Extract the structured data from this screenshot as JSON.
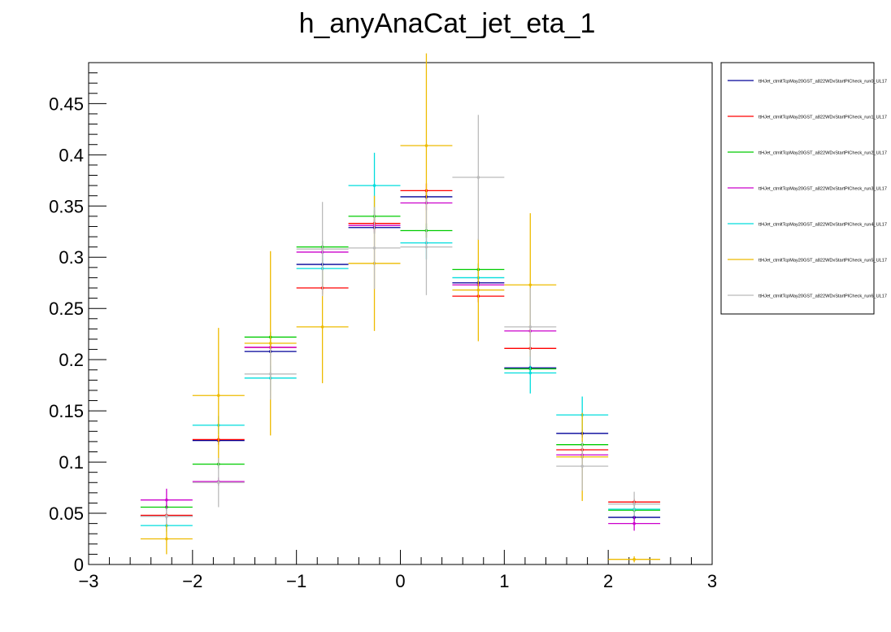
{
  "chart_data": {
    "type": "scatter",
    "title": "h_anyAnaCat_jet_eta_1",
    "xlabel": "",
    "ylabel": "",
    "xlim": [
      -3,
      3
    ],
    "ylim": [
      0,
      0.49
    ],
    "x_ticks": [
      -3,
      -2,
      -1,
      0,
      1,
      2,
      3
    ],
    "x_tick_labels": [
      "−3",
      "−2",
      "−1",
      "0",
      "1",
      "2",
      "3"
    ],
    "y_ticks": [
      0,
      0.05,
      0.1,
      0.15,
      0.2,
      0.25,
      0.3,
      0.35,
      0.4,
      0.45
    ],
    "y_tick_labels": [
      "0",
      "0.05",
      "0.1",
      "0.15",
      "0.2",
      "0.25",
      "0.3",
      "0.35",
      "0.4",
      "0.45"
    ],
    "bin_edges": [
      -2.5,
      -2,
      -1.5,
      -1,
      -0.5,
      0,
      0.5,
      1,
      1.5,
      2,
      2.5
    ],
    "x": [
      -2.25,
      -1.75,
      -1.25,
      -0.75,
      -0.25,
      0.25,
      0.75,
      1.25,
      1.75,
      2.25
    ],
    "grid": false,
    "legend_position": "right",
    "series": [
      {
        "name": "ttHJet_ctmltTcpMay20GST_a822WDxStartPICheck_run0_UL17",
        "color": "#000099",
        "values": [
          0.047,
          0.121,
          0.208,
          0.293,
          0.329,
          0.359,
          0.275,
          0.192,
          0.128,
          0.046
        ],
        "errors": [
          0.003,
          0.004,
          0.005,
          0.006,
          0.006,
          0.007,
          0.006,
          0.005,
          0.004,
          0.003
        ]
      },
      {
        "name": "ttHJet_ctmltTcpMay20GST_a822WDxStartPICheck_run1_UL17",
        "color": "#ff0000",
        "values": [
          0.048,
          0.122,
          0.212,
          0.27,
          0.333,
          0.365,
          0.262,
          0.211,
          0.112,
          0.061
        ],
        "errors": [
          0.003,
          0.004,
          0.005,
          0.006,
          0.006,
          0.007,
          0.006,
          0.005,
          0.004,
          0.003
        ]
      },
      {
        "name": "ttHJet_ctmltTcpMay20GST_a822WDxStartPICheck_run2_UL17",
        "color": "#00cc00",
        "values": [
          0.056,
          0.098,
          0.222,
          0.31,
          0.34,
          0.326,
          0.288,
          0.191,
          0.117,
          0.053
        ],
        "errors": [
          0.003,
          0.004,
          0.005,
          0.006,
          0.006,
          0.007,
          0.006,
          0.005,
          0.004,
          0.003
        ]
      },
      {
        "name": "ttHJet_ctmltTcpMay20GST_a822WDxStartPICheck_run3_UL17",
        "color": "#cc00cc",
        "values": [
          0.063,
          0.081,
          0.212,
          0.305,
          0.331,
          0.353,
          0.273,
          0.228,
          0.107,
          0.04
        ],
        "errors": [
          0.011,
          0.004,
          0.005,
          0.006,
          0.006,
          0.007,
          0.006,
          0.005,
          0.004,
          0.007
        ]
      },
      {
        "name": "ttHJet_ctmltTcpMay20GST_a822WDxStartPICheck_run4_UL17",
        "color": "#00dddd",
        "values": [
          0.038,
          0.136,
          0.182,
          0.289,
          0.37,
          0.314,
          0.28,
          0.187,
          0.146,
          0.054
        ],
        "errors": [
          0.006,
          0.009,
          0.012,
          0.016,
          0.032,
          0.016,
          0.012,
          0.02,
          0.018,
          0.006
        ]
      },
      {
        "name": "ttHJet_ctmltTcpMay20GST_a822WDxStartPICheck_run5_UL17",
        "color": "#eebb00",
        "values": [
          0.025,
          0.165,
          0.216,
          0.232,
          0.294,
          0.409,
          0.268,
          0.273,
          0.105,
          0.005
        ],
        "errors": [
          0.015,
          0.066,
          0.09,
          0.055,
          0.066,
          0.09,
          0.05,
          0.07,
          0.043,
          0.003
        ]
      },
      {
        "name": "ttHJet_ctmltTcpMay20GST_a822WDxStartPICheck_run6_UL17",
        "color": "#bbbbbb",
        "values": [
          0.047,
          0.08,
          0.186,
          0.308,
          0.309,
          0.31,
          0.378,
          0.232,
          0.096,
          0.059
        ],
        "errors": [
          0.008,
          0.024,
          0.025,
          0.046,
          0.04,
          0.047,
          0.061,
          0.038,
          0.024,
          0.012
        ]
      }
    ]
  }
}
